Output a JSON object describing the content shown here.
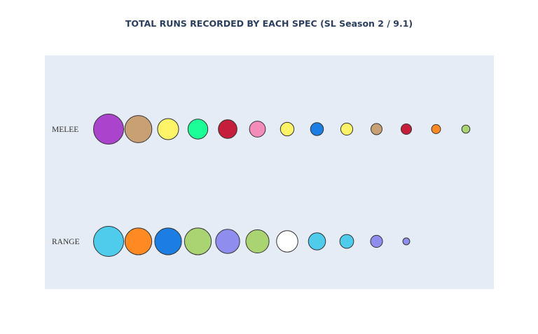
{
  "chart_data": {
    "type": "scatter",
    "title": "TOTAL RUNS RECORDED BY EACH SPEC (SL Season 2 / 9.1)",
    "xlabel": "",
    "ylabel": "",
    "categories": [
      "MELEE",
      "RANGE"
    ],
    "x_axis_visible": false,
    "grid": false,
    "plot_background": "#e5ecf6",
    "title_color": "#2a3f5f",
    "marker_outline_color": "#333333",
    "series": [
      {
        "category": "MELEE",
        "points": [
          {
            "rank": 1,
            "relative_size": 1.0,
            "color": "#aa44cc"
          },
          {
            "rank": 2,
            "relative_size": 0.9,
            "color": "#c9a074"
          },
          {
            "rank": 3,
            "relative_size": 0.7,
            "color": "#fff468"
          },
          {
            "rank": 4,
            "relative_size": 0.66,
            "color": "#1cff96"
          },
          {
            "rank": 5,
            "relative_size": 0.62,
            "color": "#c41e3a"
          },
          {
            "rank": 6,
            "relative_size": 0.53,
            "color": "#f48cba"
          },
          {
            "rank": 7,
            "relative_size": 0.45,
            "color": "#fff468"
          },
          {
            "rank": 8,
            "relative_size": 0.43,
            "color": "#1c7ee2"
          },
          {
            "rank": 9,
            "relative_size": 0.4,
            "color": "#fff468"
          },
          {
            "rank": 10,
            "relative_size": 0.37,
            "color": "#c9a074"
          },
          {
            "rank": 11,
            "relative_size": 0.35,
            "color": "#c41e3a"
          },
          {
            "rank": 12,
            "relative_size": 0.3,
            "color": "#ff8a24"
          },
          {
            "rank": 13,
            "relative_size": 0.27,
            "color": "#aad372"
          }
        ]
      },
      {
        "category": "RANGE",
        "points": [
          {
            "rank": 1,
            "relative_size": 1.0,
            "color": "#4fcbeb"
          },
          {
            "rank": 2,
            "relative_size": 0.89,
            "color": "#ff8a24"
          },
          {
            "rank": 3,
            "relative_size": 0.89,
            "color": "#1c7ee2"
          },
          {
            "rank": 4,
            "relative_size": 0.89,
            "color": "#aad372"
          },
          {
            "rank": 5,
            "relative_size": 0.8,
            "color": "#8f8ded"
          },
          {
            "rank": 6,
            "relative_size": 0.77,
            "color": "#aad372"
          },
          {
            "rank": 7,
            "relative_size": 0.71,
            "color": "#ffffff"
          },
          {
            "rank": 8,
            "relative_size": 0.57,
            "color": "#4fcbeb"
          },
          {
            "rank": 9,
            "relative_size": 0.46,
            "color": "#4fcbeb"
          },
          {
            "rank": 10,
            "relative_size": 0.4,
            "color": "#8f8ded"
          },
          {
            "rank": 11,
            "relative_size": 0.23,
            "color": "#8f8ded"
          }
        ]
      }
    ]
  }
}
